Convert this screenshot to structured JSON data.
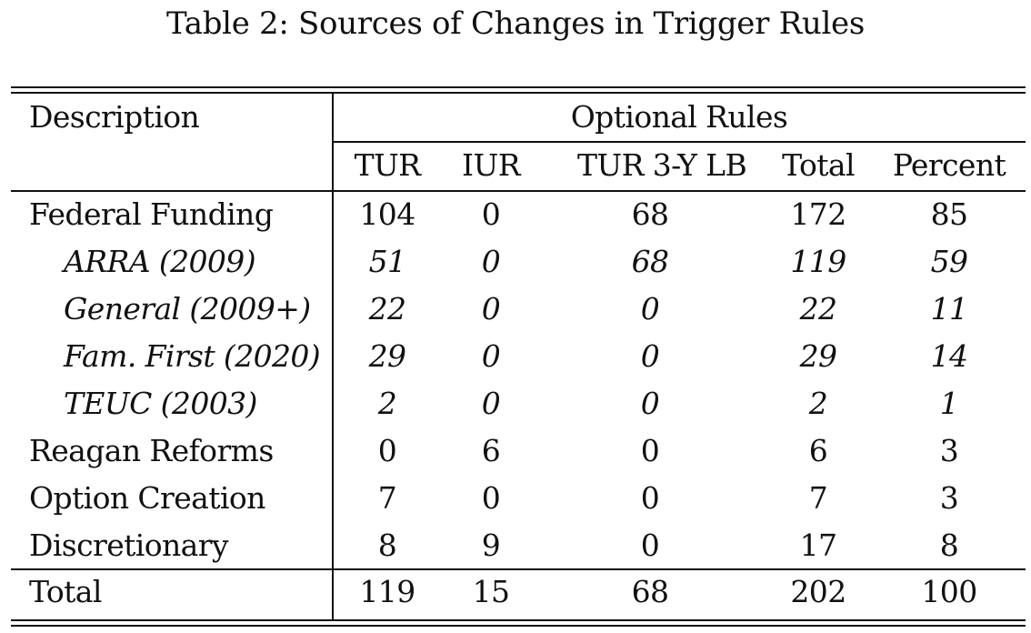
{
  "title": "Table 2: Sources of Changes in Trigger Rules",
  "header": {
    "description": "Description",
    "group": "Optional Rules",
    "columns": [
      "TUR",
      "IUR",
      "TUR 3-Y LB",
      "Total",
      "Percent"
    ]
  },
  "rows": [
    {
      "label": "Federal Funding",
      "values": [
        "104",
        "0",
        "68",
        "172",
        "85"
      ],
      "sub": false
    },
    {
      "label": "ARRA (2009)",
      "values": [
        "51",
        "0",
        "68",
        "119",
        "59"
      ],
      "sub": true
    },
    {
      "label": "General (2009+)",
      "values": [
        "22",
        "0",
        "0",
        "22",
        "11"
      ],
      "sub": true
    },
    {
      "label": "Fam. First (2020)",
      "values": [
        "29",
        "0",
        "0",
        "29",
        "14"
      ],
      "sub": true
    },
    {
      "label": "TEUC (2003)",
      "values": [
        "2",
        "0",
        "0",
        "2",
        "1"
      ],
      "sub": true
    },
    {
      "label": "Reagan Reforms",
      "values": [
        "0",
        "6",
        "0",
        "6",
        "3"
      ],
      "sub": false
    },
    {
      "label": "Option Creation",
      "values": [
        "7",
        "0",
        "0",
        "7",
        "3"
      ],
      "sub": false
    },
    {
      "label": "Discretionary",
      "values": [
        "8",
        "9",
        "0",
        "17",
        "8"
      ],
      "sub": false
    }
  ],
  "total": {
    "label": "Total",
    "values": [
      "119",
      "15",
      "68",
      "202",
      "100"
    ]
  }
}
